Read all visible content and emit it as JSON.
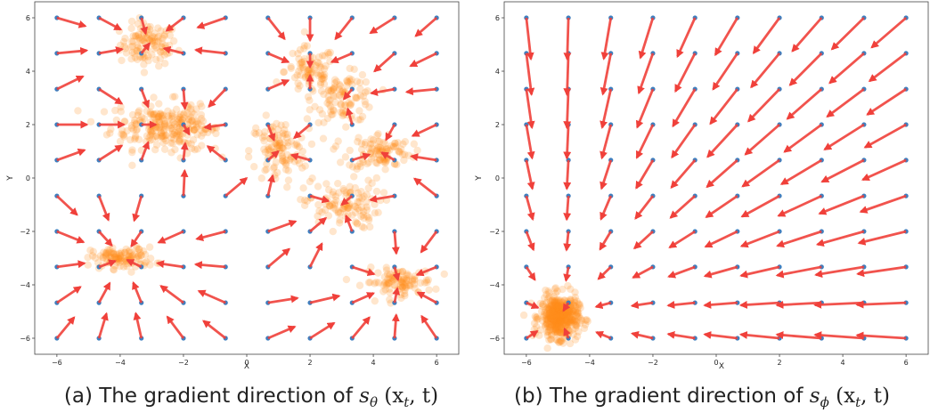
{
  "colors": {
    "arrow": "#f0403a",
    "grid_point": "#3f7fbf",
    "sample": "#ff8c1a"
  },
  "charts": [
    {
      "caption_text": "(a) The gradient direction of ",
      "caption_math": "s",
      "caption_sub": "θ",
      "caption_args": " (x",
      "caption_args_sub": "t",
      "caption_args_end": ", t)"
    },
    {
      "caption_text": "(b) The gradient direction of ",
      "caption_math": "s",
      "caption_sub": "ϕ",
      "caption_args": " (x",
      "caption_args_sub": "t",
      "caption_args_end": ", t)"
    }
  ],
  "chart_data": [
    {
      "type": "quiver_scatter",
      "xlabel": "X",
      "ylabel": "Y",
      "xlim": [
        -6.7,
        6.7
      ],
      "ylim": [
        -6.6,
        6.6
      ],
      "xticks": [
        -6,
        -4,
        -2,
        0,
        2,
        4,
        6
      ],
      "yticks": [
        -6,
        -4,
        -2,
        0,
        2,
        4,
        6
      ],
      "grid_points": [
        -6,
        -4.67,
        -3.33,
        -2,
        -0.67,
        0.67,
        2,
        3.33,
        4.67,
        6
      ],
      "field": "attraction toward nearest of sample clusters",
      "clusters": [
        {
          "center": [
            -3.1,
            5.0
          ],
          "spread": [
            0.45,
            0.4
          ],
          "n": 110
        },
        {
          "center": [
            -2.9,
            2.0
          ],
          "spread": [
            0.7,
            0.45
          ],
          "n": 160
        },
        {
          "center": [
            -1.9,
            1.8
          ],
          "spread": [
            0.5,
            0.4
          ],
          "n": 80
        },
        {
          "center": [
            2.0,
            4.0
          ],
          "spread": [
            0.4,
            0.45
          ],
          "n": 80
        },
        {
          "center": [
            3.1,
            3.0
          ],
          "spread": [
            0.5,
            0.45
          ],
          "n": 100
        },
        {
          "center": [
            1.0,
            1.0
          ],
          "spread": [
            0.45,
            0.6
          ],
          "n": 110
        },
        {
          "center": [
            4.2,
            1.0
          ],
          "spread": [
            0.5,
            0.35
          ],
          "n": 100
        },
        {
          "center": [
            3.0,
            -1.0
          ],
          "spread": [
            0.6,
            0.45
          ],
          "n": 110
        },
        {
          "center": [
            -3.9,
            -3.0
          ],
          "spread": [
            0.5,
            0.2
          ],
          "n": 110
        },
        {
          "center": [
            4.8,
            -3.9
          ],
          "spread": [
            0.55,
            0.25
          ],
          "n": 100
        }
      ]
    },
    {
      "type": "quiver_scatter",
      "xlabel": "X",
      "ylabel": "Y",
      "xlim": [
        -6.7,
        6.7
      ],
      "ylim": [
        -6.6,
        6.6
      ],
      "xticks": [
        -6,
        -4,
        -2,
        0,
        2,
        4,
        6
      ],
      "yticks": [
        -6,
        -4,
        -2,
        0,
        2,
        4,
        6
      ],
      "grid_points": [
        -6,
        -4.67,
        -3.33,
        -2,
        -0.67,
        0.67,
        2,
        3.33,
        4.67,
        6
      ],
      "field": "attraction toward single cluster",
      "clusters": [
        {
          "center": [
            -4.95,
            -5.2
          ],
          "spread": [
            0.3,
            0.4
          ],
          "n": 450
        }
      ]
    }
  ]
}
